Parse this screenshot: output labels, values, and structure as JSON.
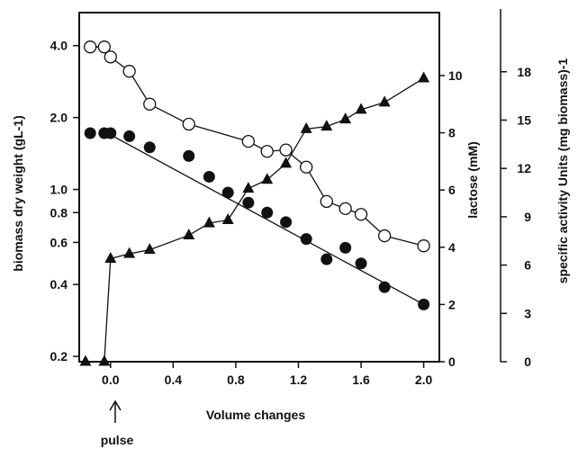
{
  "chart_data": {
    "type": "scatter",
    "x_label": "Volume changes",
    "left_y_label": "biomass dry weight (gL-1)",
    "right1_y_label": "lactose (mM)",
    "right2_y_label": "specific activity  Units (mg biomass)-1",
    "annotation": "pulse",
    "x_range": [
      -0.2,
      2.1
    ],
    "x_ticks": [
      "0.0",
      "0.4",
      "0.8",
      "1.2",
      "1.6",
      "2.0"
    ],
    "x_tick_values": [
      0,
      0.4,
      0.8,
      1.2,
      1.6,
      2.0
    ],
    "left_y_scale": "log",
    "left_y_range": [
      0.19,
      5.5
    ],
    "left_y_ticks": [
      "0.2",
      "0.4",
      "0.6",
      "0.8",
      "1.0",
      "2.0",
      "4.0"
    ],
    "left_y_tick_values": [
      0.2,
      0.4,
      0.6,
      0.8,
      1.0,
      2.0,
      4.0
    ],
    "right1_y_range": [
      0,
      12.2
    ],
    "right1_y_ticks": [
      "0",
      "2",
      "4",
      "6",
      "8",
      "10"
    ],
    "right1_y_tick_values": [
      0,
      2,
      4,
      6,
      8,
      10
    ],
    "right2_y_range": [
      0,
      20.5
    ],
    "right2_y_ticks": [
      "0",
      "3",
      "6",
      "9",
      "12",
      "15",
      "18"
    ],
    "right2_y_tick_values": [
      0,
      3,
      6,
      9,
      12,
      15,
      18
    ],
    "series": [
      {
        "marker": "filled-circle",
        "axis": "left",
        "x": [
          -0.13,
          -0.04,
          0.0,
          0.12,
          0.25,
          0.5,
          0.63,
          0.75,
          0.88,
          1.0,
          1.12,
          1.25,
          1.38,
          1.5,
          1.6,
          1.75,
          2.0
        ],
        "y": [
          1.72,
          1.72,
          1.72,
          1.67,
          1.5,
          1.38,
          1.13,
          0.97,
          0.88,
          0.8,
          0.73,
          0.62,
          0.51,
          0.57,
          0.49,
          0.39,
          0.33
        ],
        "fit": [
          [
            -0.04,
            1.75
          ],
          [
            2.0,
            0.33
          ]
        ]
      },
      {
        "marker": "open-circle",
        "axis": "right1",
        "x": [
          -0.13,
          -0.04,
          0.0,
          0.12,
          0.25,
          0.5,
          0.88,
          1.0,
          1.12,
          1.25,
          1.38,
          1.5,
          1.6,
          1.75,
          2.0
        ],
        "y": [
          11.0,
          11.0,
          10.65,
          10.15,
          9.0,
          8.3,
          7.7,
          7.35,
          7.4,
          6.8,
          5.6,
          5.35,
          5.15,
          4.4,
          4.05
        ]
      },
      {
        "marker": "filled-triangle",
        "axis": "right2",
        "x": [
          -0.16,
          -0.04,
          0.0,
          0.12,
          0.25,
          0.5,
          0.63,
          0.75,
          0.88,
          1.0,
          1.12,
          1.25,
          1.38,
          1.5,
          1.6,
          1.75,
          2.0
        ],
        "y": [
          0,
          0,
          6.4,
          6.7,
          6.95,
          7.85,
          8.6,
          8.8,
          10.75,
          11.3,
          12.3,
          14.45,
          14.6,
          15.05,
          15.65,
          16.1,
          17.6
        ]
      }
    ]
  }
}
